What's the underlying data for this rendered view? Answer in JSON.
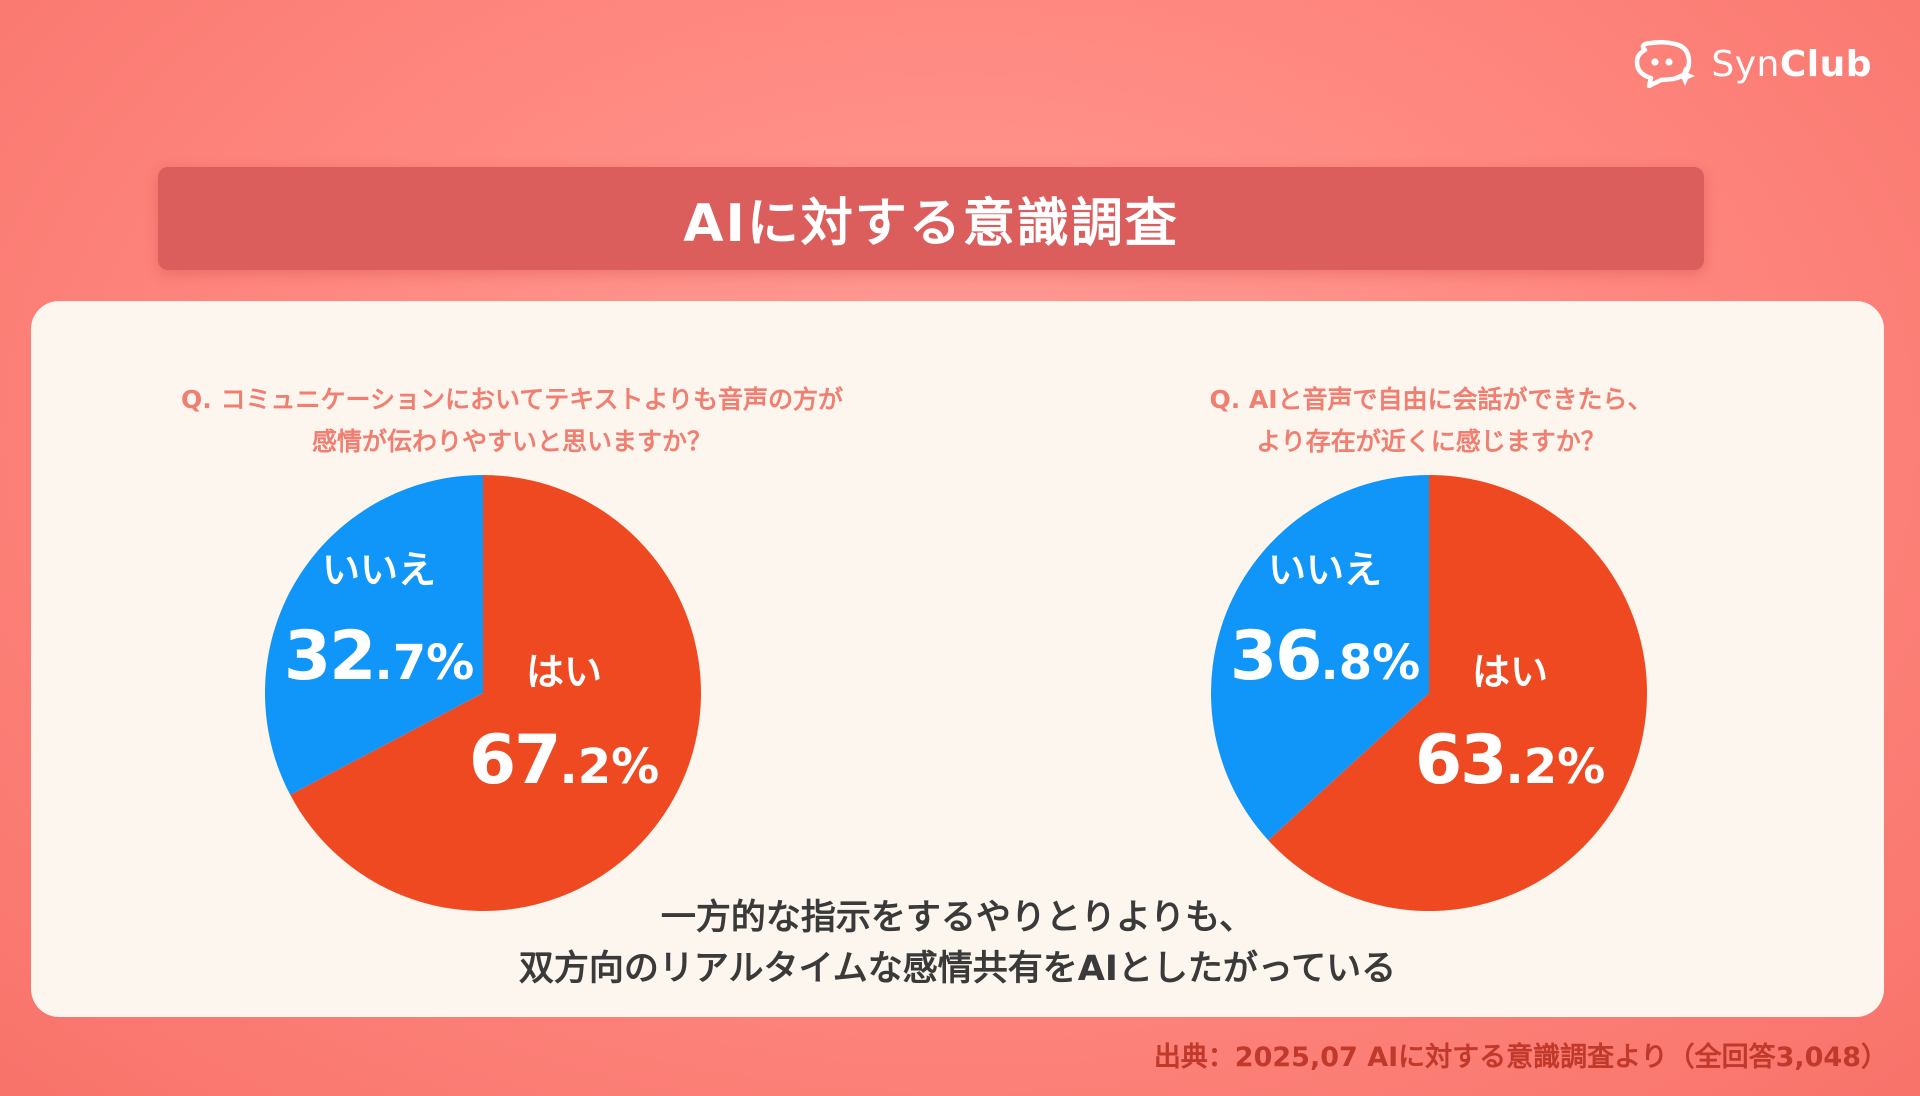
{
  "brand": {
    "name_light": "Syn",
    "name_bold": "Club",
    "icon": "chat-bubble-sparkle-icon"
  },
  "title": "AIに対する意識調査",
  "conclusion": {
    "line1": "一方的な指示をするやりとりよりも、",
    "line2": "双方向のリアルタイムな感情共有をAIとしたがっている"
  },
  "source": "出典：2025,07 AIに対する意識調査より（全回答3,048）",
  "colors": {
    "yes": "#ef4922",
    "no": "#1095f8",
    "background": "#ff8f88",
    "panel": "#fdf6ee",
    "question": "#f07f72",
    "banner": "#db5d5c"
  },
  "chart_data": [
    {
      "type": "pie",
      "title_lines": [
        "Q. コミュニケーションにおいてテキストよりも音声の方が",
        "感情が伝わりやすいと思いますか？"
      ],
      "slices": [
        {
          "label": "はい",
          "value": 67.2,
          "int": "67",
          "dec": ".2%",
          "color": "#ef4922"
        },
        {
          "label": "いいえ",
          "value": 32.7,
          "int": "32",
          "dec": ".7%",
          "color": "#1095f8"
        }
      ]
    },
    {
      "type": "pie",
      "title_lines": [
        "Q. AIと音声で自由に会話ができたら、",
        "より存在が近くに感じますか？"
      ],
      "slices": [
        {
          "label": "はい",
          "value": 63.2,
          "int": "63",
          "dec": ".2%",
          "color": "#ef4922"
        },
        {
          "label": "いいえ",
          "value": 36.8,
          "int": "36",
          "dec": ".8%",
          "color": "#1095f8"
        }
      ]
    }
  ]
}
